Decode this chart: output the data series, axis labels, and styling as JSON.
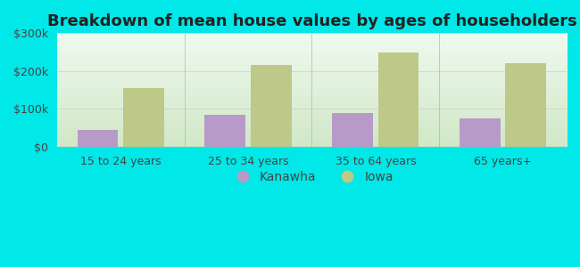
{
  "title": "Breakdown of mean house values by ages of householders",
  "categories": [
    "15 to 24 years",
    "25 to 34 years",
    "35 to 64 years",
    "65 years+"
  ],
  "kanawha_values": [
    45000,
    85000,
    90000,
    75000
  ],
  "iowa_values": [
    155000,
    215000,
    250000,
    220000
  ],
  "kanawha_color": "#b89ac8",
  "iowa_color": "#bec888",
  "background_color": "#00e8e8",
  "ylim": [
    0,
    300000
  ],
  "yticks": [
    0,
    100000,
    200000,
    300000
  ],
  "ytick_labels": [
    "$0",
    "$100k",
    "$200k",
    "$300k"
  ],
  "title_fontsize": 13,
  "tick_fontsize": 9,
  "legend_fontsize": 10,
  "bar_width": 0.32,
  "legend_kanawha": "Kanawha",
  "legend_iowa": "Iowa",
  "grad_top": "#f0faf0",
  "grad_bottom": "#c8e8c0",
  "grad_left": "#e8f8f0",
  "grad_right": "#d8ecc8"
}
